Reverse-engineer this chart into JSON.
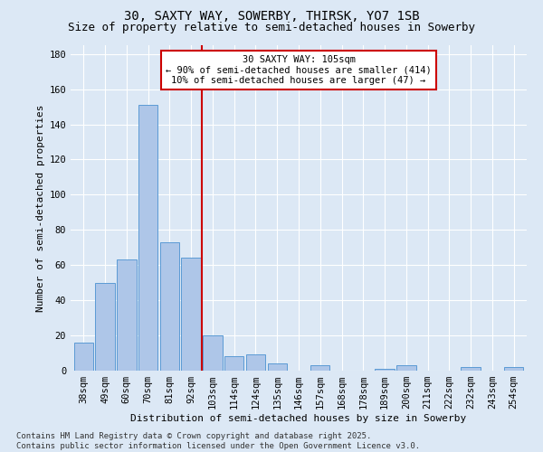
{
  "title_line1": "30, SAXTY WAY, SOWERBY, THIRSK, YO7 1SB",
  "title_line2": "Size of property relative to semi-detached houses in Sowerby",
  "xlabel": "Distribution of semi-detached houses by size in Sowerby",
  "ylabel": "Number of semi-detached properties",
  "categories": [
    "38sqm",
    "49sqm",
    "60sqm",
    "70sqm",
    "81sqm",
    "92sqm",
    "103sqm",
    "114sqm",
    "124sqm",
    "135sqm",
    "146sqm",
    "157sqm",
    "168sqm",
    "178sqm",
    "189sqm",
    "200sqm",
    "211sqm",
    "222sqm",
    "232sqm",
    "243sqm",
    "254sqm"
  ],
  "values": [
    16,
    50,
    63,
    151,
    73,
    64,
    20,
    8,
    9,
    4,
    0,
    3,
    0,
    0,
    1,
    3,
    0,
    0,
    2,
    0,
    2
  ],
  "bar_color": "#aec6e8",
  "bar_edge_color": "#5b9bd5",
  "vline_x_index": 6,
  "vline_color": "#cc0000",
  "annotation_title": "30 SAXTY WAY: 105sqm",
  "annotation_line2": "← 90% of semi-detached houses are smaller (414)",
  "annotation_line3": "10% of semi-detached houses are larger (47) →",
  "annotation_box_color": "#ffffff",
  "annotation_box_edge": "#cc0000",
  "ylim": [
    0,
    185
  ],
  "yticks": [
    0,
    20,
    40,
    60,
    80,
    100,
    120,
    140,
    160,
    180
  ],
  "footer_line1": "Contains HM Land Registry data © Crown copyright and database right 2025.",
  "footer_line2": "Contains public sector information licensed under the Open Government Licence v3.0.",
  "bg_color": "#dce8f5",
  "grid_color": "#ffffff",
  "title_fontsize": 10,
  "subtitle_fontsize": 9,
  "axis_label_fontsize": 8,
  "tick_fontsize": 7.5,
  "annotation_fontsize": 7.5,
  "footer_fontsize": 6.5
}
